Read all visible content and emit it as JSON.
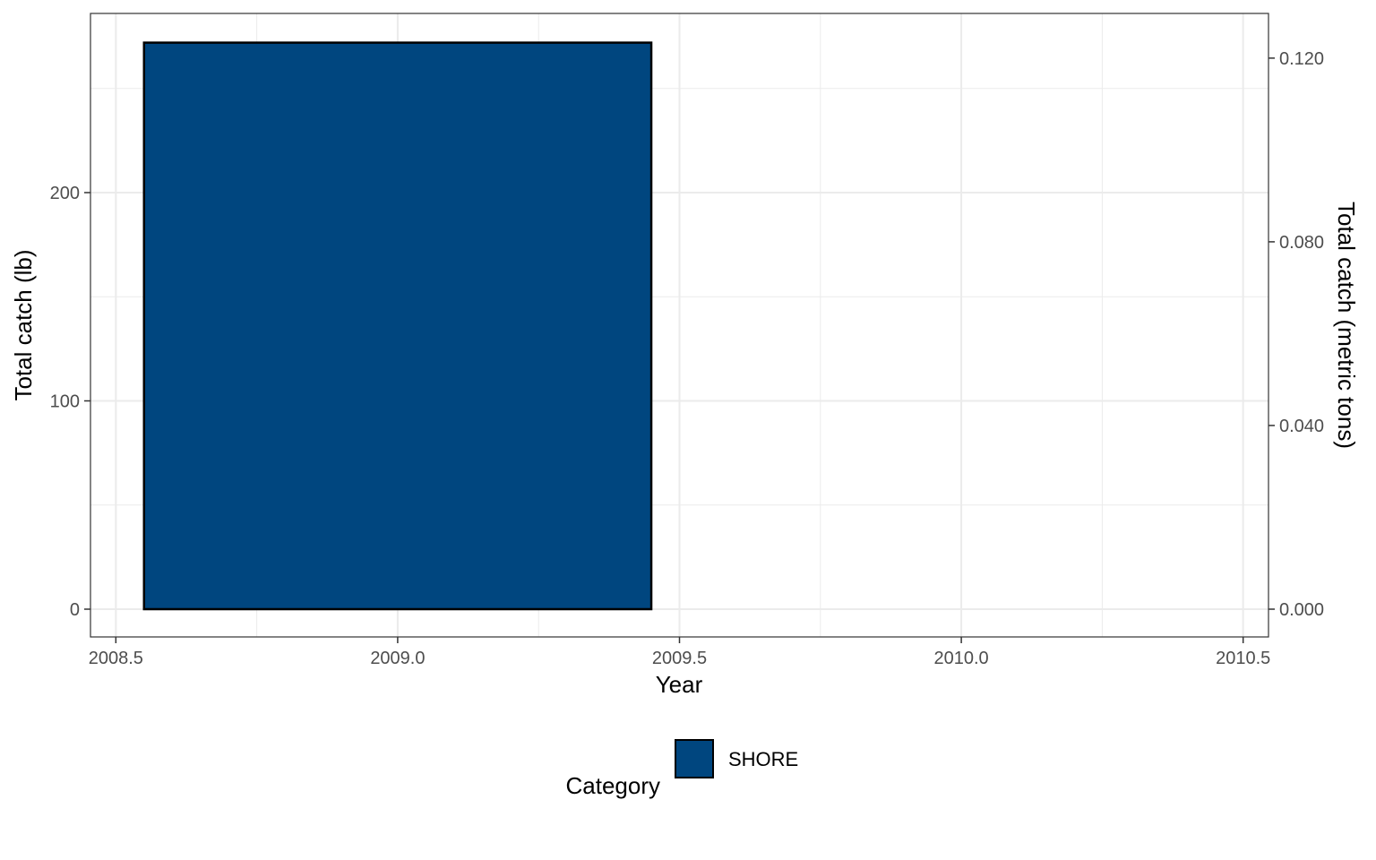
{
  "chart_data": {
    "type": "bar",
    "xlabel": "Year",
    "ylabel_left": "Total catch (lb)",
    "ylabel_right": "Total catch (metric tons)",
    "x_ticks": [
      "2008.5",
      "2009.0",
      "2009.5",
      "2010.0",
      "2010.5"
    ],
    "x_tick_values": [
      2008.5,
      2009.0,
      2009.5,
      2010.0,
      2010.5
    ],
    "y_ticks_left": [
      "0",
      "100",
      "200"
    ],
    "y_tick_values_left": [
      0,
      100,
      200
    ],
    "y_ticks_right": [
      "0.000",
      "0.040",
      "0.080",
      "0.120"
    ],
    "y_tick_values_right": [
      0,
      0.04,
      0.08,
      0.12
    ],
    "xlim": [
      2008.455,
      2010.545
    ],
    "ylim_left": [
      0,
      280
    ],
    "ylim_right": [
      0,
      0.127
    ],
    "categories": [
      "2009",
      "2010"
    ],
    "x": [
      2009,
      2010
    ],
    "bar_width": 0.9,
    "series": [
      {
        "name": "SHORE",
        "values": [
          272,
          0
        ],
        "color": "#00467f"
      }
    ],
    "legend": {
      "title": "Category",
      "items": [
        "SHORE"
      ],
      "placement": "bottom"
    },
    "grid": true
  }
}
